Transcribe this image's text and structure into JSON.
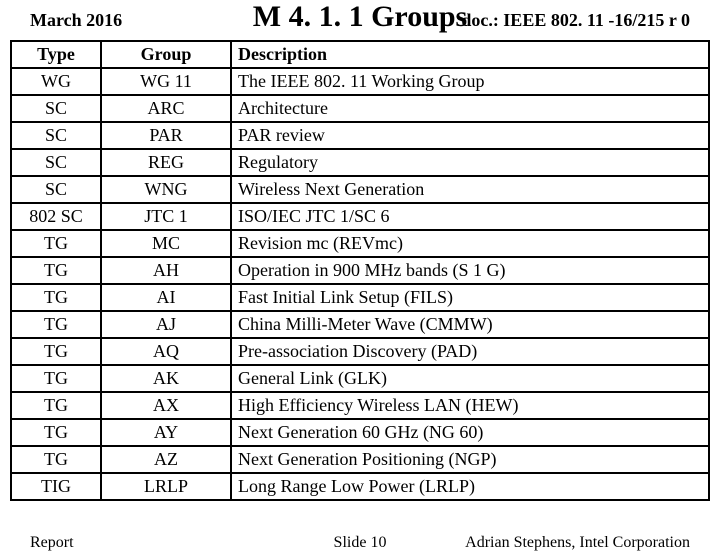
{
  "header": {
    "date": "March 2016",
    "title": "M 4. 1. 1 Groups",
    "docnum": "doc.: IEEE 802. 11 -16/215 r 0"
  },
  "table": {
    "columns": [
      "Type",
      "Group",
      "Description"
    ],
    "rows": [
      [
        "WG",
        "WG 11",
        "The IEEE 802. 11 Working Group"
      ],
      [
        "SC",
        "ARC",
        "Architecture"
      ],
      [
        "SC",
        "PAR",
        "PAR review"
      ],
      [
        "SC",
        "REG",
        "Regulatory"
      ],
      [
        "SC",
        "WNG",
        "Wireless Next Generation"
      ],
      [
        "802 SC",
        "JTC 1",
        "ISO/IEC JTC 1/SC 6"
      ],
      [
        "TG",
        "MC",
        "Revision mc (REVmc)"
      ],
      [
        "TG",
        "AH",
        "Operation in 900 MHz bands (S 1 G)"
      ],
      [
        "TG",
        "AI",
        "Fast Initial Link Setup (FILS)"
      ],
      [
        "TG",
        "AJ",
        "China Milli-Meter Wave (CMMW)"
      ],
      [
        "TG",
        "AQ",
        "Pre-association Discovery (PAD)"
      ],
      [
        "TG",
        "AK",
        "General Link (GLK)"
      ],
      [
        "TG",
        "AX",
        "High Efficiency Wireless LAN (HEW)"
      ],
      [
        "TG",
        "AY",
        "Next Generation 60 GHz (NG 60)"
      ],
      [
        "TG",
        "AZ",
        "Next Generation Positioning (NGP)"
      ],
      [
        "TIG",
        "LRLP",
        "Long Range Low Power (LRLP)"
      ]
    ]
  },
  "footer": {
    "left": "Report",
    "center": "Slide 10",
    "right": "Adrian Stephens, Intel Corporation"
  }
}
